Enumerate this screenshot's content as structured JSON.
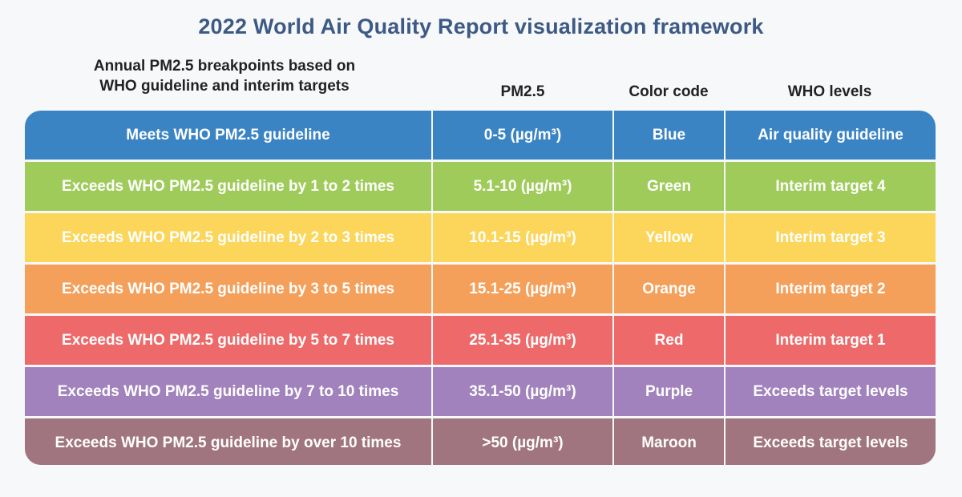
{
  "title": "2022 World Air Quality Report visualization framework",
  "headers": {
    "breakpoints_line1": "Annual PM2.5 breakpoints based on",
    "breakpoints_line2": "WHO guideline and interim targets",
    "pm25": "PM2.5",
    "color_code": "Color code",
    "who_levels": "WHO levels"
  },
  "rows": [
    {
      "description": "Meets WHO PM2.5 guideline",
      "pm25": "0-5 (µg/m³)",
      "color_code": "Blue",
      "who_level": "Air quality guideline",
      "color": "#3b84c4"
    },
    {
      "description": "Exceeds WHO PM2.5 guideline by 1 to 2 times",
      "pm25": "5.1-10 (µg/m³)",
      "color_code": "Green",
      "who_level": "Interim target 4",
      "color": "#9fcb5b"
    },
    {
      "description": "Exceeds WHO PM2.5 guideline by 2 to 3 times",
      "pm25": "10.1-15 (µg/m³)",
      "color_code": "Yellow",
      "who_level": "Interim target 3",
      "color": "#fcd65a"
    },
    {
      "description": "Exceeds WHO PM2.5 guideline by 3 to 5 times",
      "pm25": "15.1-25 (µg/m³)",
      "color_code": "Orange",
      "who_level": "Interim target 2",
      "color": "#f4a05a"
    },
    {
      "description": "Exceeds WHO PM2.5 guideline by 5 to 7 times",
      "pm25": "25.1-35 (µg/m³)",
      "color_code": "Red",
      "who_level": "Interim target 1",
      "color": "#ee6a6a"
    },
    {
      "description": "Exceeds WHO PM2.5 guideline by 7 to 10 times",
      "pm25": "35.1-50 (µg/m³)",
      "color_code": "Purple",
      "who_level": "Exceeds target levels",
      "color": "#a182bd"
    },
    {
      "description": "Exceeds WHO PM2.5 guideline by over 10 times",
      "pm25": ">50 (µg/m³)",
      "color_code": "Maroon",
      "who_level": "Exceeds target levels",
      "color": "#a17580"
    }
  ]
}
